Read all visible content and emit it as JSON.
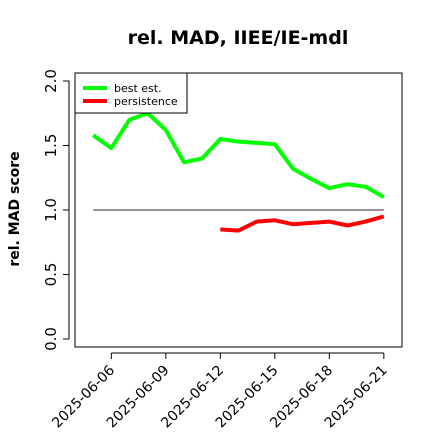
{
  "chart_data": {
    "type": "line",
    "title": "rel. MAD, IIEE/IE-mdl",
    "xlabel": "",
    "ylabel": "rel. MAD score",
    "ylim": [
      0,
      2
    ],
    "yticks": [
      "0.0",
      "0.5",
      "1.0",
      "1.5",
      "2.0"
    ],
    "xlim": [
      "2025-06-04",
      "2025-06-22"
    ],
    "xticks": [
      "2025-06-06",
      "2025-06-09",
      "2025-06-12",
      "2025-06-15",
      "2025-06-18",
      "2025-06-21"
    ],
    "reference_line": {
      "y": 1.0,
      "from": "2025-06-05",
      "to": "2025-06-21",
      "color": "#555555"
    },
    "legend": {
      "position": "top-left"
    },
    "series": [
      {
        "name": "best est.",
        "color": "#00ff00",
        "points": [
          [
            "2025-06-05",
            1.58
          ],
          [
            "2025-06-06",
            1.48
          ],
          [
            "2025-06-07",
            1.7
          ],
          [
            "2025-06-08",
            1.75
          ],
          [
            "2025-06-09",
            1.62
          ],
          [
            "2025-06-10",
            1.37
          ],
          [
            "2025-06-11",
            1.4
          ],
          [
            "2025-06-12",
            1.55
          ],
          [
            "2025-06-13",
            1.53
          ],
          [
            "2025-06-14",
            1.52
          ],
          [
            "2025-06-15",
            1.51
          ],
          [
            "2025-06-16",
            1.32
          ],
          [
            "2025-06-17",
            1.24
          ],
          [
            "2025-06-18",
            1.17
          ],
          [
            "2025-06-19",
            1.2
          ],
          [
            "2025-06-20",
            1.18
          ],
          [
            "2025-06-21",
            1.1
          ]
        ]
      },
      {
        "name": "persistence",
        "color": "#ff0000",
        "points": [
          [
            "2025-06-12",
            0.85
          ],
          [
            "2025-06-13",
            0.84
          ],
          [
            "2025-06-14",
            0.91
          ],
          [
            "2025-06-15",
            0.92
          ],
          [
            "2025-06-16",
            0.89
          ],
          [
            "2025-06-17",
            0.9
          ],
          [
            "2025-06-18",
            0.91
          ],
          [
            "2025-06-19",
            0.88
          ],
          [
            "2025-06-20",
            0.91
          ],
          [
            "2025-06-21",
            0.95
          ]
        ]
      }
    ]
  }
}
